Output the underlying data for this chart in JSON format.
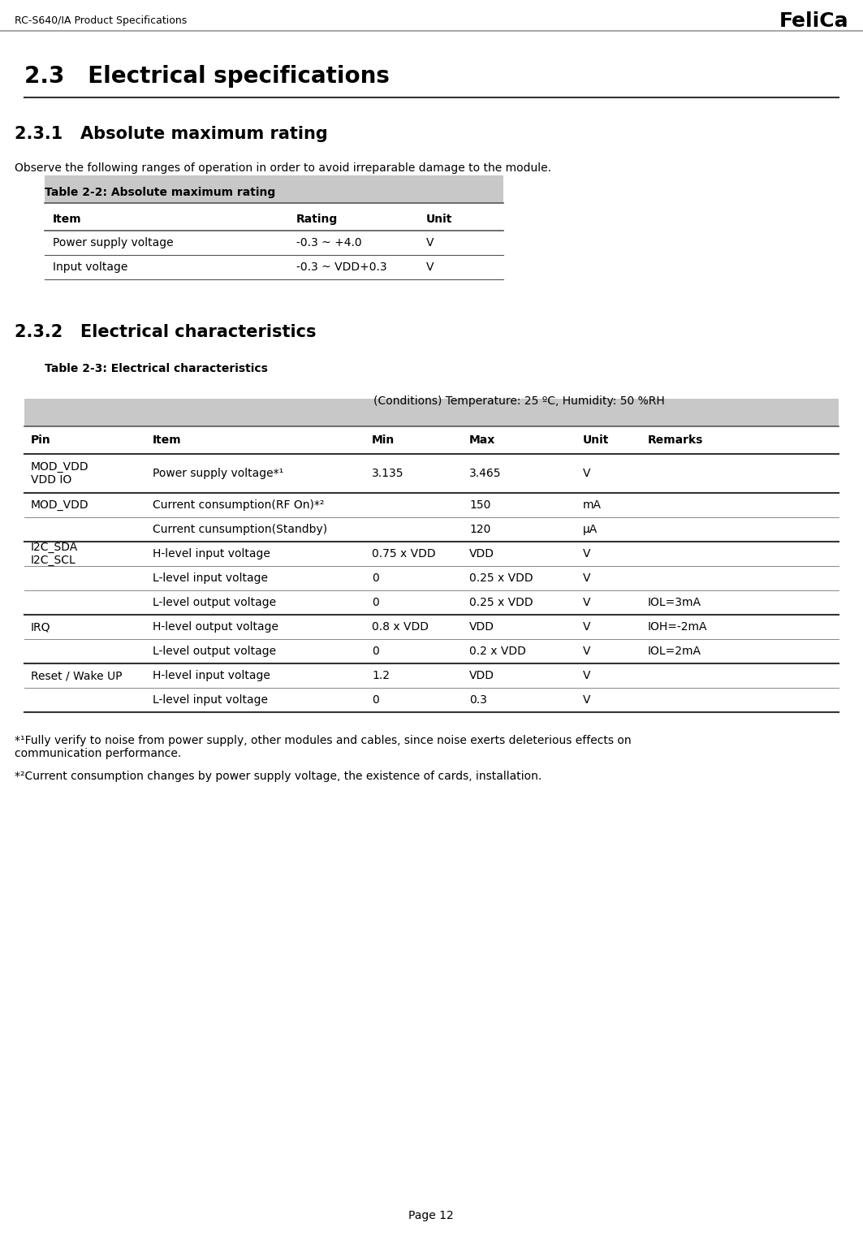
{
  "page_header_left": "RC-S640/IA Product Specifications",
  "page_header_right": "FeliCa",
  "page_number": "Page 12",
  "section_title": "2.3   Electrical specifications",
  "subsection1_title": "2.3.1   Absolute maximum rating",
  "subsection1_body": "Observe the following ranges of operation in order to avoid irreparable damage to the module.",
  "table1_title": "Table 2-2: Absolute maximum rating",
  "table1_headers": [
    "Item",
    "Rating",
    "Unit"
  ],
  "table1_rows": [
    [
      "Power supply voltage",
      "-0.3 ~ +4.0",
      "V"
    ],
    [
      "Input voltage",
      "-0.3 ~ VDD+0.3",
      "V"
    ]
  ],
  "subsection2_title": "2.3.2   Electrical characteristics",
  "table2_title": "Table 2-3: Electrical characteristics",
  "table2_conditions": "(Conditions) Temperature: 25 ºC, Humidity: 50 %RH",
  "table2_headers": [
    "Pin",
    "Item",
    "Min",
    "Max",
    "Unit",
    "Remarks"
  ],
  "table2_rows": [
    [
      "MOD_VDD\nVDD IO",
      "Power supply voltage*¹",
      "3.135",
      "3.465",
      "V",
      ""
    ],
    [
      "MOD_VDD",
      "Current consumption(RF On)*²",
      "",
      "150",
      "mA",
      ""
    ],
    [
      "",
      "Current cunsumption(Standby)",
      "",
      "120",
      "μA",
      ""
    ],
    [
      "I2C_SDA\nI2C_SCL",
      "H-level input voltage",
      "0.75 x VDD",
      "VDD",
      "V",
      ""
    ],
    [
      "",
      "L-level input voltage",
      "0",
      "0.25 x VDD",
      "V",
      ""
    ],
    [
      "",
      "L-level output voltage",
      "0",
      "0.25 x VDD",
      "V",
      "IOL=3mA"
    ],
    [
      "IRQ",
      "H-level output voltage",
      "0.8 x VDD",
      "VDD",
      "V",
      "IOH=-2mA"
    ],
    [
      "",
      "L-level output voltage",
      "0",
      "0.2 x VDD",
      "V",
      "IOL=2mA"
    ],
    [
      "Reset / Wake UP",
      "H-level input voltage",
      "1.2",
      "VDD",
      "V",
      ""
    ],
    [
      "",
      "L-level input voltage",
      "0",
      "0.3",
      "V",
      ""
    ]
  ],
  "footnote1": "*¹Fully verify to noise from power supply, other modules and cables, since noise exerts deleterious effects on\ncommunication performance.",
  "footnote2": "*²Current consumption changes by power supply voltage, the existence of cards, installation.",
  "header_bg": "#c8c8c8",
  "table_header_bg": "#c8c8c8",
  "bg_color": "#ffffff",
  "text_color": "#000000"
}
